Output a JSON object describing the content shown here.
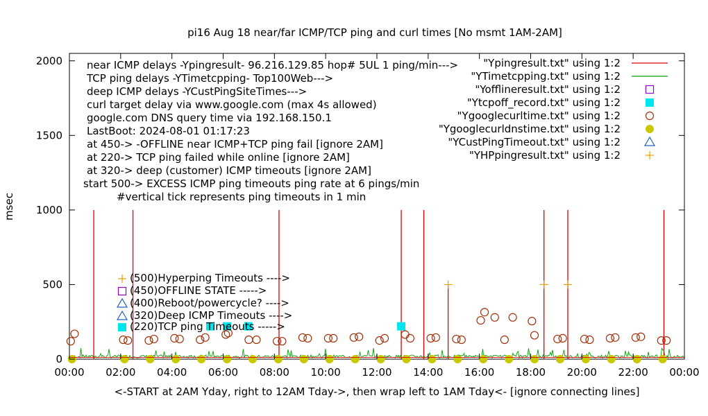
{
  "chart_data": {
    "type": "scatter",
    "title": "pi16 Aug 18  near/far ICMP/TCP ping and curl times [No msmt 1AM-2AM]",
    "xlabel": "<-START at 2AM Yday, right to 12AM Tday->, then wrap left to 1AM Tday<- [ignore connecting lines]",
    "ylabel": "msec",
    "xlim": [
      0,
      24
    ],
    "ylim": [
      0,
      2050
    ],
    "x_ticks": [
      "00:00",
      "02:00",
      "04:00",
      "06:00",
      "08:00",
      "10:00",
      "12:00",
      "14:00",
      "16:00",
      "18:00",
      "20:00",
      "22:00",
      "00:00"
    ],
    "y_ticks": [
      0,
      500,
      1000,
      1500,
      2000
    ],
    "notes": [
      "near ICMP delays -Ypingresult- 96.216.129.85 hop# 5UL 1 ping/min--->",
      "TCP ping delays -YTimetcpping- Top100Web--->",
      "deep ICMP delays -YCustPingSiteTimes--->",
      "curl target delay via www.google.com (max 4s allowed)",
      "google.com DNS query time via 192.168.150.1",
      "LastBoot: 2024-08-01 01:17:23",
      "at 450-> -OFFLINE near ICMP+TCP ping fail [ignore 2AM]",
      "at 220-> TCP ping failed while online [ignore 2AM]",
      "at 320-> deep (customer) ICMP timeouts [ignore 2AM]",
      "start 500-> EXCESS ICMP ping timeouts ping rate at 6 pings/min",
      "#vertical tick represents ping timeouts in 1 min"
    ],
    "legend": [
      {
        "label": "\"Ypingresult.txt\" using 1:2",
        "color": "#e00000",
        "marker": "line"
      },
      {
        "label": "\"YTimetcpping.txt\" using 1:2",
        "color": "#00a000",
        "marker": "line"
      },
      {
        "label": "\"Yofflineresult.txt\" using 1:2",
        "color": "#9400d3",
        "marker": "open-square"
      },
      {
        "label": "\"Ytcpoff_record.txt\" using 1:2",
        "color": "#00e5ee",
        "marker": "filled-square"
      },
      {
        "label": "\"Ygooglecurltime.txt\" using 1:2",
        "color": "#a0300a",
        "marker": "open-circle"
      },
      {
        "label": "\"Ygooglecurldnstime.txt\" using 1:2",
        "color": "#c8c800",
        "marker": "filled-circle"
      },
      {
        "label": "\"YCustPingTimeout.txt\" using 1:2",
        "color": "#1f5fbf",
        "marker": "open-triangle"
      },
      {
        "label": "\"YHPpingresult.txt\" using 1:2",
        "color": "#e8a000",
        "marker": "plus"
      }
    ],
    "annotations": [
      {
        "label": "(500)Hyperping Timeouts ---->",
        "y": 500,
        "marker": "plus"
      },
      {
        "label": "(450)OFFLINE STATE ----->",
        "y": 450,
        "marker": "open-square"
      },
      {
        "label": "(400)Reboot/powercycle? ---->",
        "y": 400,
        "marker": "open-triangle"
      },
      {
        "label": "(320)Deep ICMP Timeouts ---->",
        "y": 320,
        "marker": "open-triangle"
      },
      {
        "label": "(220)TCP ping Timeouts ----->",
        "y": 220,
        "marker": "filled-square"
      }
    ],
    "series": [
      {
        "name": "\"Ypingresult.txt\" using 1:2",
        "kind": "timeout_spikes",
        "x": [
          0.95,
          2.48,
          8.18,
          12.95,
          13.83,
          14.78,
          18.52,
          19.45,
          23.2
        ],
        "values": [
          1000,
          1000,
          1000,
          1000,
          1000,
          500,
          1000,
          1000,
          1000
        ]
      },
      {
        "name": "\"YTimetcpping.txt\" using 1:2",
        "kind": "baseline_noise",
        "x_range": [
          0,
          24
        ],
        "typical": 20,
        "max": 75
      },
      {
        "name": "\"Ytcpoff_record.txt\" using 1:2",
        "x": [
          5.5,
          6.15,
          6.98,
          12.95
        ],
        "values": [
          220,
          220,
          220,
          220
        ]
      },
      {
        "name": "\"Ygooglecurltime.txt\" using 1:2",
        "x": [
          0.05,
          0.2,
          2.1,
          2.28,
          3.1,
          3.3,
          4.1,
          4.3,
          5.1,
          5.3,
          6.1,
          6.2,
          7.0,
          7.3,
          8.1,
          8.3,
          9.1,
          9.3,
          10.1,
          10.3,
          11.1,
          11.3,
          12.1,
          12.3,
          13.1,
          13.3,
          14.1,
          14.3,
          15.1,
          15.3,
          16.05,
          16.2,
          16.6,
          16.98,
          17.3,
          18.05,
          18.15,
          19.05,
          19.25,
          20.1,
          20.3,
          21.1,
          21.3,
          22.1,
          22.3,
          23.1,
          23.3
        ],
        "values": [
          120,
          170,
          130,
          125,
          125,
          135,
          140,
          135,
          130,
          145,
          165,
          175,
          130,
          130,
          120,
          120,
          145,
          140,
          140,
          140,
          145,
          150,
          125,
          140,
          165,
          140,
          140,
          145,
          135,
          130,
          260,
          315,
          280,
          130,
          280,
          255,
          160,
          135,
          140,
          135,
          130,
          140,
          145,
          145,
          150,
          125,
          125
        ]
      },
      {
        "name": "\"Ygooglecurldnstime.txt\" using 1:2",
        "x": [
          0.1,
          2.15,
          3.15,
          4.15,
          5.15,
          6.15,
          7.15,
          8.15,
          9.15,
          10.15,
          11.15,
          12.15,
          13.15,
          14.15,
          15.15,
          16.15,
          17.15,
          18.15,
          19.15,
          20.15,
          21.15,
          22.15,
          23.15
        ],
        "values": [
          0,
          0,
          0,
          0,
          0,
          0,
          0,
          0,
          0,
          0,
          0,
          0,
          0,
          0,
          0,
          0,
          0,
          0,
          0,
          0,
          0,
          0,
          0
        ]
      },
      {
        "name": "\"YHPpingresult.txt\" using 1:2",
        "x": [
          14.78,
          18.52,
          19.45
        ],
        "values": [
          500,
          500,
          500
        ]
      }
    ]
  }
}
